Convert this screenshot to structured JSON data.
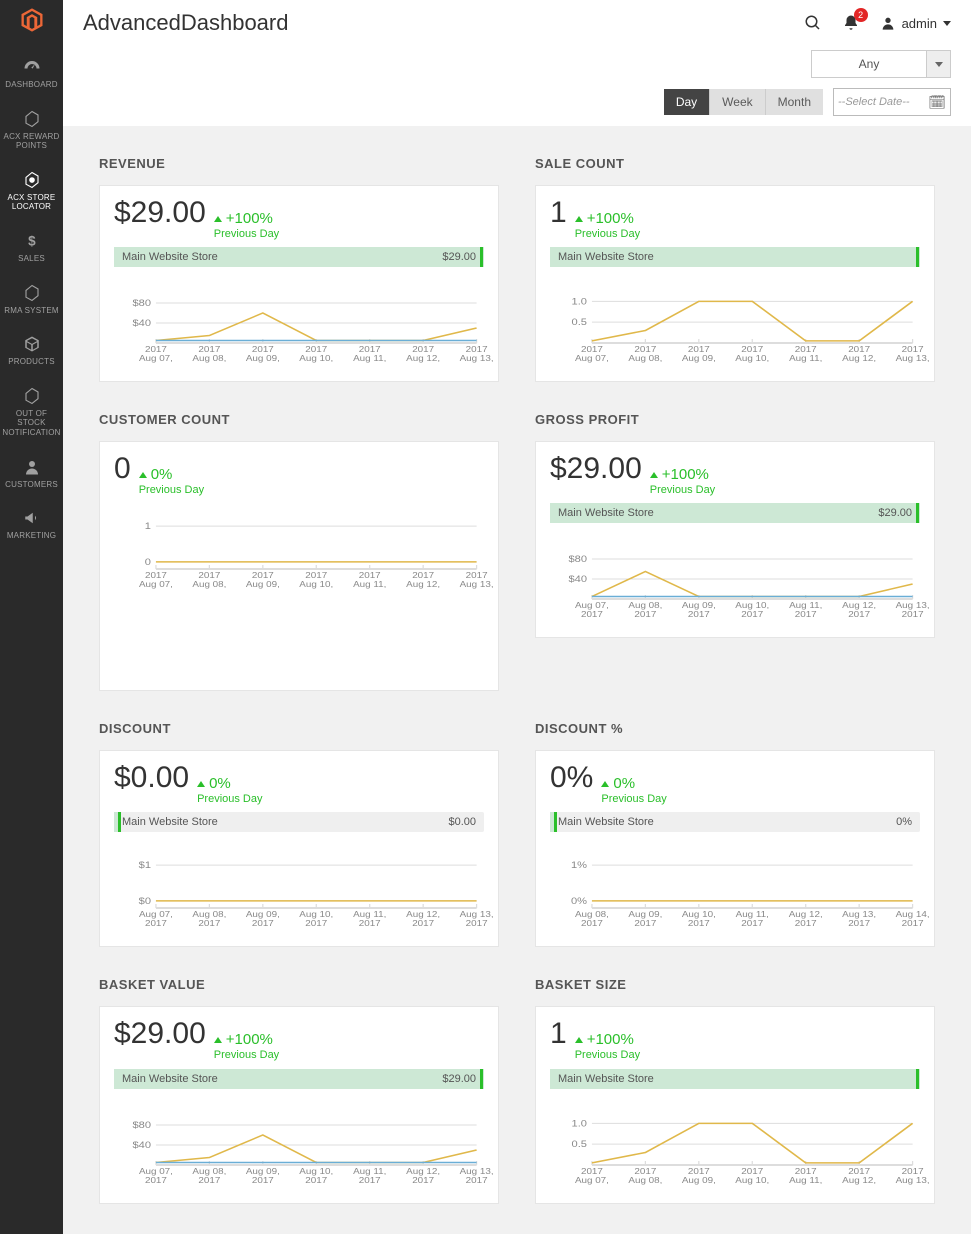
{
  "sidebar": {
    "items": [
      {
        "label": "DASHBOARD",
        "icon": "gauge"
      },
      {
        "label": "ACX REWARD POINTS",
        "icon": "hex"
      },
      {
        "label": "ACX STORE LOCATOR",
        "icon": "star-hex"
      },
      {
        "label": "SALES",
        "icon": "dollar"
      },
      {
        "label": "RMA SYSTEM",
        "icon": "hex"
      },
      {
        "label": "PRODUCTS",
        "icon": "cube"
      },
      {
        "label": "OUT OF STOCK NOTIFICATION",
        "icon": "hex"
      },
      {
        "label": "CUSTOMERS",
        "icon": "person"
      },
      {
        "label": "MARKETING",
        "icon": "megaphone"
      }
    ]
  },
  "header": {
    "title": "AdvancedDashboard",
    "notification_count": "2",
    "user": "admin"
  },
  "filters": {
    "store_selector": "Any",
    "period": {
      "options": [
        "Day",
        "Week",
        "Month"
      ],
      "active": "Day"
    },
    "date_placeholder": "--Select Date--"
  },
  "colors": {
    "accent_green": "#2abf2a",
    "bar_fill": "#cde8d5",
    "bar_bg": "#efefef",
    "logo": "#ec6737",
    "content_bg": "#f1f1f1",
    "grid_line": "#ddd",
    "axis_line": "#bbb",
    "series1": "#e0b84a",
    "series2": "#6aaed6"
  },
  "cards": {
    "revenue": {
      "title": "REVENUE",
      "value": "$29.00",
      "trend_pct": "+100%",
      "trend_label": "Previous Day",
      "bar": {
        "label": "Main Website Store",
        "value_label": "$29.00",
        "fill_pct": 100,
        "mark_pct": 99
      },
      "chart": {
        "type": "line",
        "yticks": [
          "$80",
          "$40"
        ],
        "ylim": [
          0,
          100
        ],
        "ytick_vals": [
          80,
          40
        ],
        "xlabels": [
          "Aug 07,",
          "Aug 08,",
          "Aug 09,",
          "Aug 10,",
          "Aug 11,",
          "Aug 12,",
          "Aug 13,"
        ],
        "xyear": "2017",
        "series": [
          {
            "color": "#e0b84a",
            "values": [
              5,
              15,
              60,
              5,
              5,
              5,
              30
            ]
          },
          {
            "color": "#6aaed6",
            "values": [
              5,
              5,
              5,
              5,
              5,
              5,
              5
            ]
          }
        ]
      }
    },
    "sale_count": {
      "title": "SALE COUNT",
      "value": "1",
      "trend_pct": "+100%",
      "trend_label": "Previous Day",
      "bar": {
        "label": "Main Website Store",
        "value_label": "",
        "fill_pct": 100,
        "mark_pct": 99
      },
      "chart": {
        "type": "line",
        "yticks": [
          "1.0",
          "0.5"
        ],
        "ylim": [
          0,
          1.2
        ],
        "ytick_vals": [
          1.0,
          0.5
        ],
        "xlabels": [
          "Aug 07,",
          "Aug 08,",
          "Aug 09,",
          "Aug 10,",
          "Aug 11,",
          "Aug 12,",
          "Aug 13,"
        ],
        "xyear": "2017",
        "series": [
          {
            "color": "#e0b84a",
            "values": [
              0.05,
              0.3,
              1.0,
              1.0,
              0.05,
              0.05,
              1.0
            ]
          }
        ]
      }
    },
    "customer_count": {
      "title": "CUSTOMER COUNT",
      "value": "0",
      "trend_pct": "0%",
      "trend_label": "Previous Day",
      "bar": null,
      "chart": {
        "type": "line",
        "yticks": [
          "1",
          "0"
        ],
        "ylim": [
          -0.2,
          1.2
        ],
        "ytick_vals": [
          1,
          0
        ],
        "xlabels": [
          "Aug 07,",
          "Aug 08,",
          "Aug 09,",
          "Aug 10,",
          "Aug 11,",
          "Aug 12,",
          "Aug 13,"
        ],
        "xyear": "2017",
        "series": [
          {
            "color": "#e0b84a",
            "values": [
              0,
              0,
              0,
              0,
              0,
              0,
              0
            ]
          }
        ]
      },
      "tall": true
    },
    "gross_profit": {
      "title": "GROSS PROFIT",
      "value": "$29.00",
      "trend_pct": "+100%",
      "trend_label": "Previous Day",
      "bar": {
        "label": "Main Website Store",
        "value_label": "$29.00",
        "fill_pct": 100,
        "mark_pct": 99
      },
      "chart": {
        "type": "line",
        "yticks": [
          "$80",
          "$40"
        ],
        "ylim": [
          0,
          100
        ],
        "ytick_vals": [
          80,
          40
        ],
        "xlabels": [
          "Aug 07, 2017",
          "Aug 08, 2017",
          "Aug 09, 2017",
          "Aug 10, 2017",
          "Aug 11, 2017",
          "Aug 12, 2017",
          "Aug 13, 2017"
        ],
        "xyear": "",
        "series": [
          {
            "color": "#e0b84a",
            "values": [
              5,
              55,
              5,
              5,
              5,
              5,
              30
            ]
          },
          {
            "color": "#6aaed6",
            "values": [
              5,
              5,
              5,
              5,
              5,
              5,
              5
            ]
          }
        ]
      }
    },
    "discount": {
      "title": "DISCOUNT",
      "value": "$0.00",
      "trend_pct": "0%",
      "trend_label": "Previous Day",
      "bar": {
        "label": "Main Website Store",
        "value_label": "$0.00",
        "fill_pct": 2,
        "mark_pct": 1
      },
      "chart": {
        "type": "line",
        "yticks": [
          "$1",
          "$0"
        ],
        "ylim": [
          -0.2,
          1.2
        ],
        "ytick_vals": [
          1,
          0
        ],
        "xlabels": [
          "Aug 07, 2017",
          "Aug 08, 2017",
          "Aug 09, 2017",
          "Aug 10, 2017",
          "Aug 11, 2017",
          "Aug 12, 2017",
          "Aug 13, 2017"
        ],
        "xyear": "",
        "series": [
          {
            "color": "#e0b84a",
            "values": [
              0,
              0,
              0,
              0,
              0,
              0,
              0
            ]
          }
        ]
      }
    },
    "discount_pct": {
      "title": "DISCOUNT %",
      "value": "0%",
      "trend_pct": "0%",
      "trend_label": "Previous Day",
      "bar": {
        "label": "Main Website Store",
        "value_label": "0%",
        "fill_pct": 2,
        "mark_pct": 1
      },
      "chart": {
        "type": "line",
        "yticks": [
          "1%",
          "0%"
        ],
        "ylim": [
          -0.2,
          1.2
        ],
        "ytick_vals": [
          1,
          0
        ],
        "xlabels": [
          "Aug 08, 2017",
          "Aug 09, 2017",
          "Aug 10, 2017",
          "Aug 11, 2017",
          "Aug 12, 2017",
          "Aug 13, 2017",
          "Aug 14, 2017"
        ],
        "xyear": "",
        "series": [
          {
            "color": "#e0b84a",
            "values": [
              0,
              0,
              0,
              0,
              0,
              0,
              0
            ]
          }
        ]
      }
    },
    "basket_value": {
      "title": "BASKET VALUE",
      "value": "$29.00",
      "trend_pct": "+100%",
      "trend_label": "Previous Day",
      "bar": {
        "label": "Main Website Store",
        "value_label": "$29.00",
        "fill_pct": 100,
        "mark_pct": 99
      },
      "chart": {
        "type": "line",
        "yticks": [
          "$80",
          "$40"
        ],
        "ylim": [
          0,
          100
        ],
        "ytick_vals": [
          80,
          40
        ],
        "xlabels": [
          "Aug 07, 2017",
          "Aug 08, 2017",
          "Aug 09, 2017",
          "Aug 10, 2017",
          "Aug 11, 2017",
          "Aug 12, 2017",
          "Aug 13, 2017"
        ],
        "xyear": "",
        "series": [
          {
            "color": "#e0b84a",
            "values": [
              5,
              15,
              60,
              5,
              5,
              5,
              30
            ]
          },
          {
            "color": "#6aaed6",
            "values": [
              5,
              5,
              5,
              5,
              5,
              5,
              5
            ]
          }
        ]
      }
    },
    "basket_size": {
      "title": "BASKET SIZE",
      "value": "1",
      "trend_pct": "+100%",
      "trend_label": "Previous Day",
      "bar": {
        "label": "Main Website Store",
        "value_label": "",
        "fill_pct": 100,
        "mark_pct": 99
      },
      "chart": {
        "type": "line",
        "yticks": [
          "1.0",
          "0.5"
        ],
        "ylim": [
          0,
          1.2
        ],
        "ytick_vals": [
          1.0,
          0.5
        ],
        "xlabels": [
          "Aug 07,",
          "Aug 08,",
          "Aug 09,",
          "Aug 10,",
          "Aug 11,",
          "Aug 12,",
          "Aug 13,"
        ],
        "xyear": "2017",
        "series": [
          {
            "color": "#e0b84a",
            "values": [
              0.05,
              0.3,
              1.0,
              1.0,
              0.05,
              0.05,
              1.0
            ]
          }
        ]
      }
    }
  },
  "card_order": [
    "revenue",
    "sale_count",
    "customer_count",
    "gross_profit",
    "discount",
    "discount_pct",
    "basket_value",
    "basket_size"
  ]
}
